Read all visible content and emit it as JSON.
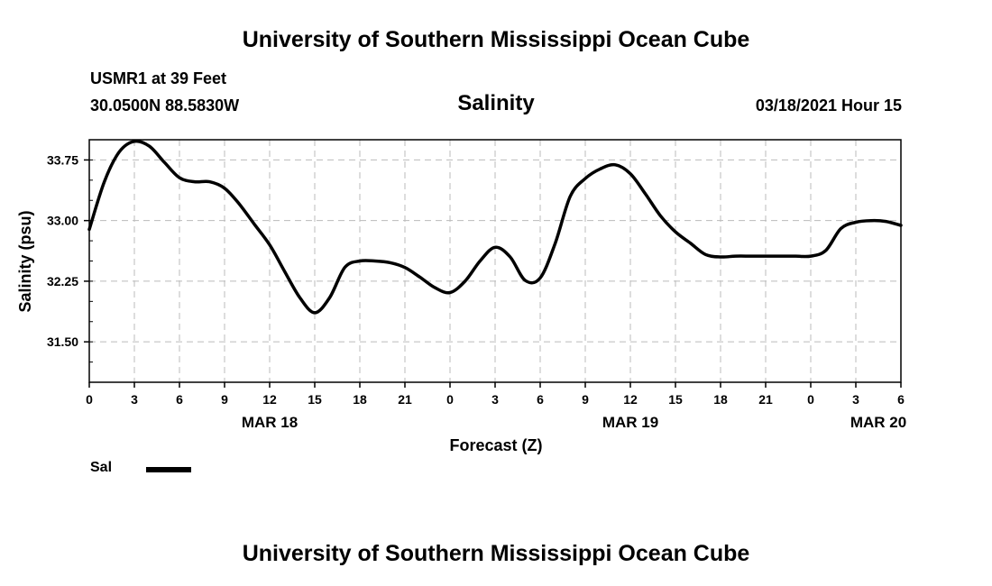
{
  "page": {
    "title_top": "University of Southern Mississippi Ocean Cube",
    "title_bottom": "University of Southern Mississippi Ocean Cube",
    "station": "USMR1 at 39 Feet",
    "coordinates": "30.0500N 88.5830W",
    "run_time": "03/18/2021 Hour 15"
  },
  "colors": {
    "line": "#000000",
    "grid": "#bbbbbb",
    "background": "#ffffff"
  },
  "chart_data": {
    "type": "line",
    "title": "Salinity",
    "xlabel": "Forecast (Z)",
    "ylabel": "Salinity (psu)",
    "ylim": [
      31.0,
      34.0
    ],
    "xlim": [
      0,
      54
    ],
    "x_tick_values": [
      0,
      3,
      6,
      9,
      12,
      15,
      18,
      21,
      24,
      27,
      30,
      33,
      36,
      39,
      42,
      45,
      48,
      51,
      54
    ],
    "x_tick_labels": [
      "0",
      "3",
      "6",
      "9",
      "12",
      "15",
      "18",
      "21",
      "0",
      "3",
      "6",
      "9",
      "12",
      "15",
      "18",
      "21",
      "0",
      "3",
      "6"
    ],
    "date_labels": [
      {
        "x": 12,
        "label": "MAR 18"
      },
      {
        "x": 36,
        "label": "MAR 19"
      },
      {
        "x": 52.5,
        "label": "MAR 20"
      }
    ],
    "y_tick_values": [
      31.5,
      32.25,
      33.0,
      33.75
    ],
    "y_tick_labels": [
      "31.50",
      "32.25",
      "33.00",
      "33.75"
    ],
    "grid": true,
    "legend": "bottom-left",
    "series": [
      {
        "name": "Sal",
        "x": [
          0,
          1,
          2,
          3,
          4,
          5,
          6,
          7,
          8,
          9,
          10,
          11,
          12,
          13,
          14,
          15,
          16,
          17,
          18,
          19,
          20,
          21,
          22,
          23,
          24,
          25,
          26,
          27,
          28,
          29,
          30,
          31,
          32,
          33,
          34,
          35,
          36,
          37,
          38,
          39,
          40,
          41,
          42,
          43,
          44,
          45,
          46,
          47,
          48,
          49,
          50,
          51,
          52,
          53,
          54
        ],
        "values": [
          32.89,
          33.48,
          33.85,
          33.98,
          33.92,
          33.72,
          33.53,
          33.48,
          33.48,
          33.4,
          33.2,
          32.95,
          32.7,
          32.37,
          32.05,
          31.86,
          32.05,
          32.42,
          32.5,
          32.5,
          32.48,
          32.42,
          32.3,
          32.17,
          32.11,
          32.25,
          32.5,
          32.67,
          32.55,
          32.26,
          32.29,
          32.72,
          33.3,
          33.52,
          33.64,
          33.69,
          33.58,
          33.33,
          33.06,
          32.86,
          32.72,
          32.58,
          32.55,
          32.56,
          32.56,
          32.56,
          32.56,
          32.56,
          32.56,
          32.63,
          32.9,
          32.98,
          33.0,
          32.99,
          32.94
        ]
      }
    ]
  }
}
